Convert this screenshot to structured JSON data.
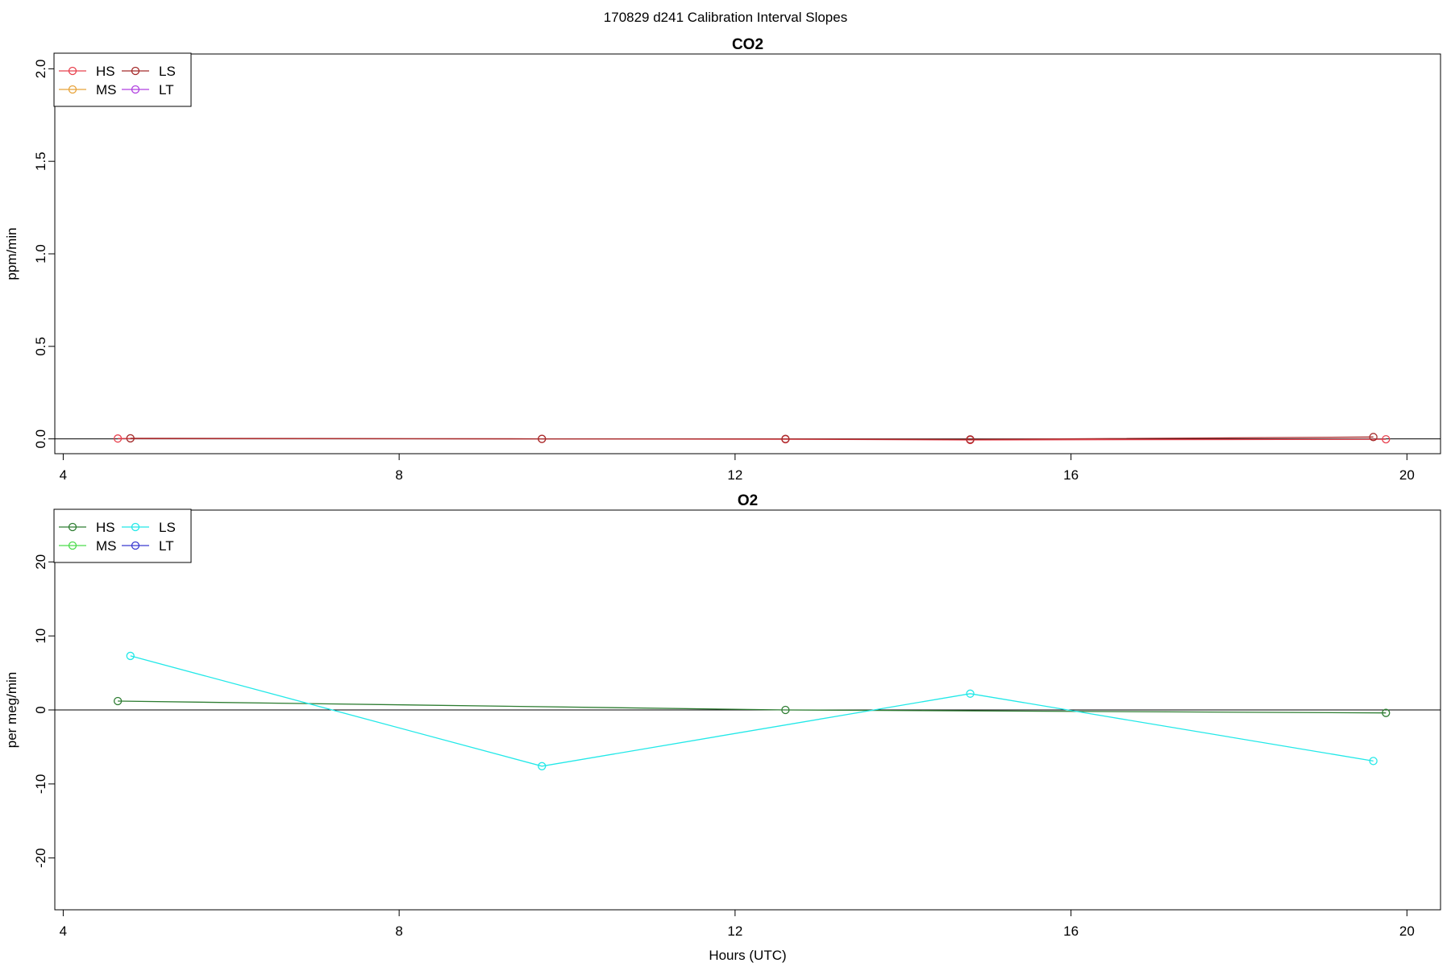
{
  "figure": {
    "title": "170829   d241   Calibration Interval Slopes"
  },
  "chart_data": [
    {
      "type": "line",
      "title": "CO2",
      "xlabel": "",
      "ylabel": "ppm/min",
      "xlim": [
        3.9,
        20.4
      ],
      "ylim": [
        -0.08,
        2.08
      ],
      "x_ticks": [
        4,
        8,
        12,
        16,
        20
      ],
      "y_ticks": [
        0.0,
        0.5,
        1.0,
        1.5,
        2.0
      ],
      "y_tick_labels": [
        "0.0",
        "0.5",
        "1.0",
        "1.5",
        "2.0"
      ],
      "zero_line": true,
      "legend": {
        "position": "top-left",
        "columns": 2,
        "entries": [
          "HS",
          "MS",
          "LS",
          "LT"
        ]
      },
      "series": [
        {
          "name": "HS",
          "color": "#e8414e",
          "x": [
            4.65,
            9.7,
            12.6,
            14.8,
            19.75
          ],
          "y": [
            0.002,
            0.0,
            -0.002,
            -0.006,
            -0.002
          ]
        },
        {
          "name": "MS",
          "color": "#e8a33a",
          "x": [],
          "y": []
        },
        {
          "name": "LS",
          "color": "#a52a2a",
          "x": [
            4.8,
            9.7,
            12.6,
            14.8,
            19.6
          ],
          "y": [
            0.003,
            0.0,
            0.0,
            -0.003,
            0.01
          ]
        },
        {
          "name": "LT",
          "color": "#b040e0",
          "x": [],
          "y": []
        }
      ]
    },
    {
      "type": "line",
      "title": "O2",
      "xlabel": "Hours (UTC)",
      "ylabel": "per meg/min",
      "xlim": [
        3.9,
        20.4
      ],
      "ylim": [
        -27,
        27
      ],
      "x_ticks": [
        4,
        8,
        12,
        16,
        20
      ],
      "y_ticks": [
        -20,
        -10,
        0,
        10,
        20
      ],
      "y_tick_labels": [
        "-20",
        "-10",
        "0",
        "10",
        "20"
      ],
      "zero_line": true,
      "legend": {
        "position": "top-left",
        "columns": 2,
        "entries": [
          "HS",
          "MS",
          "LS",
          "LT"
        ]
      },
      "series": [
        {
          "name": "HS",
          "color": "#2e7d32",
          "x": [
            4.65,
            12.6,
            19.75
          ],
          "y": [
            1.2,
            0.0,
            -0.4
          ]
        },
        {
          "name": "MS",
          "color": "#4cdc4c",
          "x": [],
          "y": []
        },
        {
          "name": "LS",
          "color": "#22e8e8",
          "x": [
            4.8,
            9.7,
            14.8,
            19.6
          ],
          "y": [
            7.3,
            -7.6,
            2.2,
            -6.9
          ]
        },
        {
          "name": "LT",
          "color": "#3a3ad0",
          "x": [],
          "y": []
        }
      ]
    }
  ]
}
